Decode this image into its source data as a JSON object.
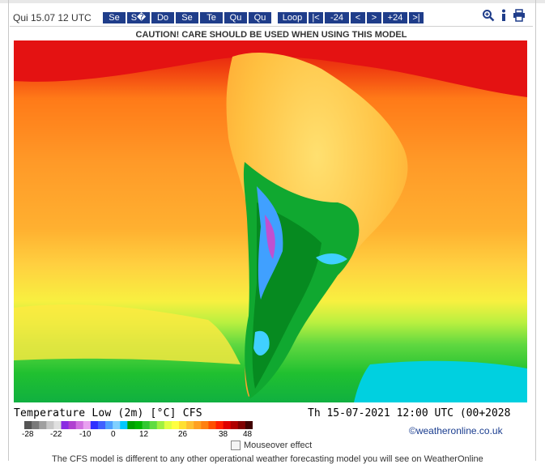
{
  "header": {
    "date_label": "Qui 15.07 12 UTC",
    "days": [
      "Se",
      "S�",
      "Do",
      "Se",
      "Te",
      "Qu",
      "Qu"
    ],
    "nav": {
      "loop": "Loop",
      "first": "|<",
      "minus24": "-24",
      "prev": "<",
      "next": ">",
      "plus24": "+24",
      "last": ">|"
    },
    "icons": [
      "zoom-icon",
      "info-icon",
      "print-icon"
    ]
  },
  "caution": "CAUTION! CARE SHOULD BE USED WHEN USING THIS MODEL",
  "map": {
    "title": "Temperature Low (2m) [°C] CFS",
    "run": "Th 15-07-2021 12:00 UTC (00+2028",
    "credit": "©weatheronline.co.uk"
  },
  "legend": {
    "ticks": [
      "-28",
      "-22",
      "-10",
      "0",
      "12",
      "26",
      "38",
      "48"
    ],
    "colors": [
      "#555555",
      "#7a7a7a",
      "#a0a0a0",
      "#c8c8c8",
      "#e0e0e0",
      "#8a2be2",
      "#b040d0",
      "#d070e0",
      "#e8a0f0",
      "#3030ff",
      "#4060ff",
      "#50a0ff",
      "#80d0ff",
      "#00c8ff",
      "#00a000",
      "#00b400",
      "#30c830",
      "#60dc40",
      "#a0f040",
      "#e0ff40",
      "#ffff40",
      "#ffe030",
      "#ffc030",
      "#ffa020",
      "#ff8010",
      "#ff5000",
      "#ff2000",
      "#e00000",
      "#b00000",
      "#800000",
      "#400000"
    ]
  },
  "mouseover": "Mouseover effect",
  "footer": "The CFS model is different to any other operational weather forecasting model you will see on WeatherOnline"
}
